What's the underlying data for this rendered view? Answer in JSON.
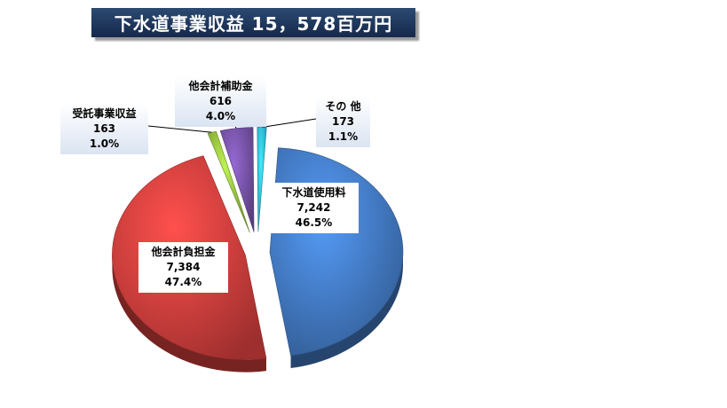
{
  "header": {
    "title": "下水道事業収益 15，578百万円"
  },
  "chart_data": {
    "type": "pie",
    "title": "下水道事業収益 15，578百万円",
    "unit": "百万円",
    "total": 15578,
    "slices": [
      {
        "name": "下水道使用料",
        "value": 7242,
        "value_label": "7,242",
        "percent_label": "46.5%",
        "color": "#3f73b8"
      },
      {
        "name": "他会計負担金",
        "value": 7384,
        "value_label": "7,384",
        "percent_label": "47.4%",
        "color": "#c63b39"
      },
      {
        "name": "受託事業収益",
        "value": 163,
        "value_label": "163",
        "percent_label": "1.0%",
        "color": "#8cb43b"
      },
      {
        "name": "他会計補助金",
        "value": 616,
        "value_label": "616",
        "percent_label": "4.0%",
        "color": "#6f4e9c"
      },
      {
        "name": "その 他",
        "value": 173,
        "value_label": "173",
        "percent_label": "1.1%",
        "color": "#2eb0d8"
      }
    ]
  }
}
